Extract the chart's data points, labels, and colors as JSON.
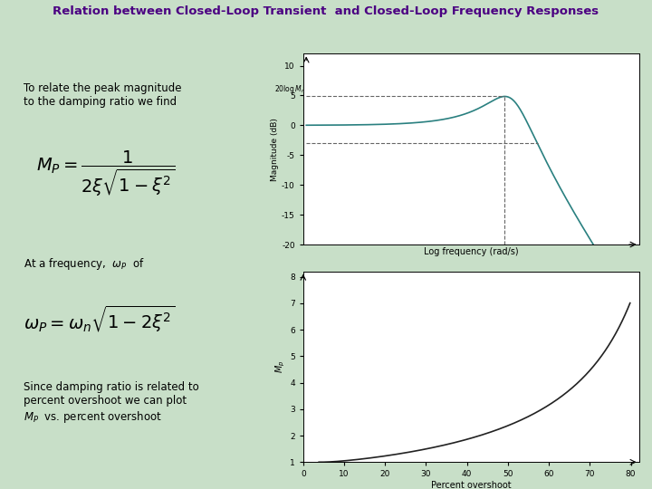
{
  "title": "Relation between Closed-Loop Transient  and Closed-Loop Frequency Responses",
  "bg_color": "#c8dfc8",
  "title_color": "#4b0082",
  "header_bar_color": "#6a9a6a",
  "plot1_ylabel": "Magnitude (dB)",
  "plot1_xlabel": "Log frequency (rad/s)",
  "plot1_color": "#2a8080",
  "plot1_ylim": [
    -20,
    12
  ],
  "plot1_yticks": [
    10,
    5,
    0,
    -5,
    -10,
    -15,
    -20
  ],
  "plot1_dashed_color": "#666666",
  "plot2_ylabel": "$M_p$",
  "plot2_xlabel": "Percent overshoot",
  "plot2_color": "#222222",
  "plot2_ylim": [
    1,
    8
  ],
  "plot2_xlim": [
    0,
    80
  ],
  "plot2_yticks": [
    1,
    2,
    3,
    4,
    5,
    6,
    7,
    8
  ],
  "plot2_xticks": [
    0,
    10,
    20,
    30,
    40,
    50,
    60,
    70,
    80
  ]
}
